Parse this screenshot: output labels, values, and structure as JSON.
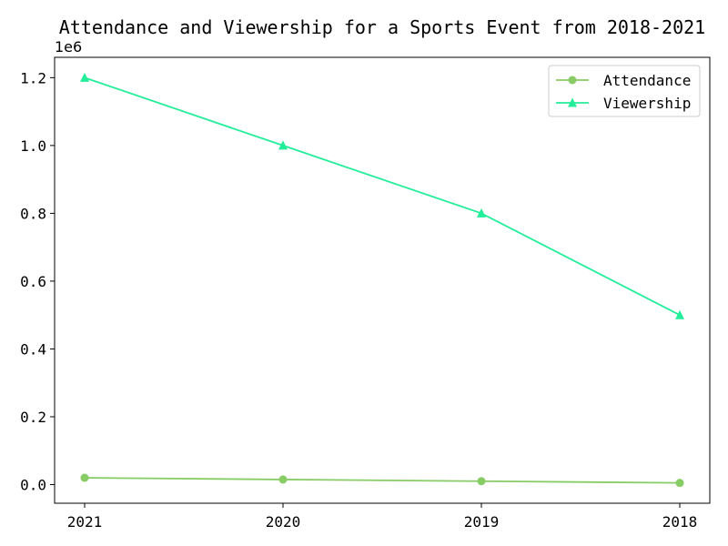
{
  "chart_data": {
    "type": "line",
    "title": "Attendance and Viewership for a Sports Event from 2018-2021",
    "xlabel": "",
    "ylabel": "",
    "y_offset_label": "1e6",
    "categories": [
      "2021",
      "2020",
      "2019",
      "2018"
    ],
    "y_tick_labels": [
      "0.0",
      "0.2",
      "0.4",
      "0.6",
      "0.8",
      "1.0",
      "1.2"
    ],
    "y_tick_values": [
      0,
      200000,
      400000,
      600000,
      800000,
      1000000,
      1200000
    ],
    "ylim": [
      -55000,
      1260000
    ],
    "grid": false,
    "legend_position": "top-right",
    "series": [
      {
        "name": "Attendance",
        "values": [
          20000,
          15000,
          10000,
          5000
        ],
        "color": "#88cc66",
        "marker": "circle"
      },
      {
        "name": "Viewership",
        "values": [
          1200000,
          1000000,
          800000,
          500000
        ],
        "color": "#22ee99",
        "marker": "triangle"
      }
    ]
  }
}
